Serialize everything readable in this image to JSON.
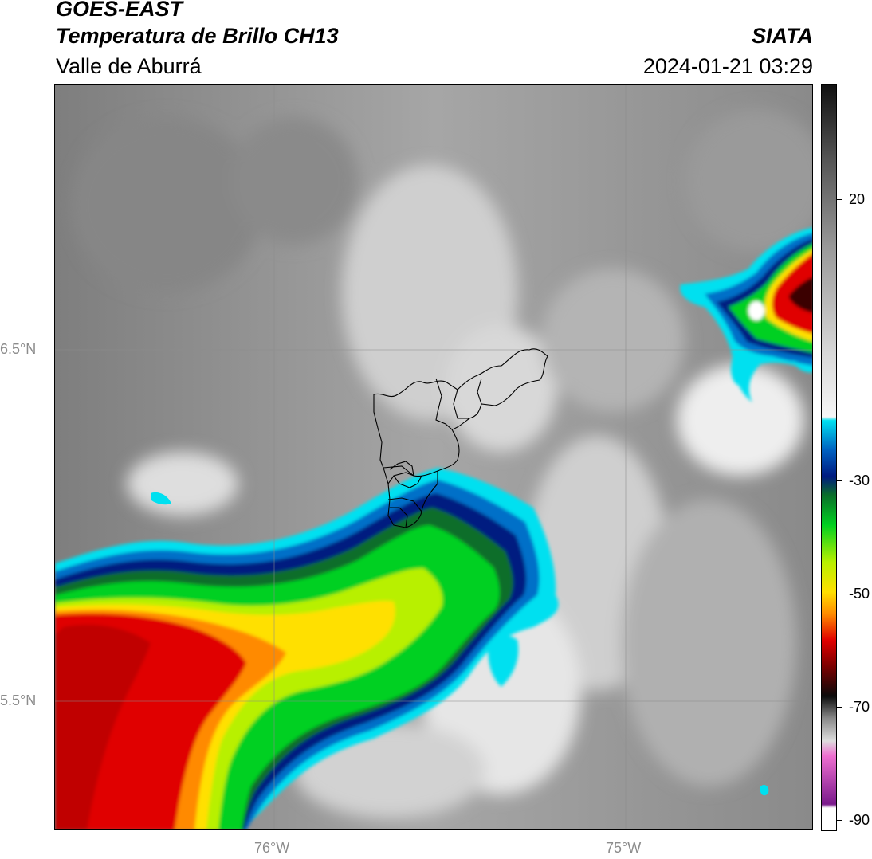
{
  "header": {
    "satellite": "GOES-EAST",
    "product": "Temperatura de Brillo CH13",
    "region": "Valle de Aburrá",
    "organization": "SIATA",
    "timestamp": "2024-01-21 03:29"
  },
  "map": {
    "lat_labels": [
      "6.5°N",
      "5.5°N"
    ],
    "lon_labels": [
      "76°W",
      "75°W"
    ]
  },
  "colorbar": {
    "tick_labels": [
      "20",
      "-30",
      "-50",
      "-70",
      "-90"
    ],
    "colors": {
      "cyan": "#00e0f0",
      "blue": "#0060c0",
      "navy": "#001a80",
      "dark_green": "#0a6e2a",
      "green": "#00d020",
      "yellow_green": "#b8f000",
      "yellow": "#ffe000",
      "orange": "#ff8a00",
      "red": "#e00000",
      "dark_red": "#7a0000",
      "black": "#0a0a0a",
      "pink": "#ee6fd0",
      "purple": "#7a1a8c",
      "white": "#ffffff"
    }
  }
}
